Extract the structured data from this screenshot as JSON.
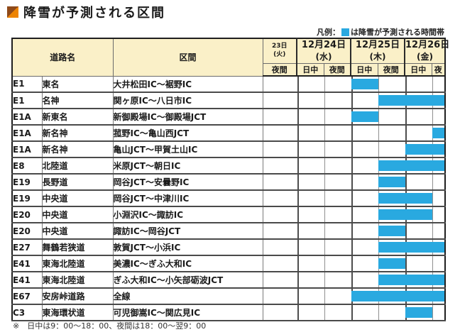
{
  "page": {
    "title": "降雪が予測される区間",
    "footnote": "※　日中は9：00～18：00、夜間は18：00～翌9：00"
  },
  "legend": {
    "label": "凡例：",
    "description": "は降雪が予測される時間帯"
  },
  "table": {
    "col_headers": {
      "road_name": "道路名",
      "section": "区間"
    },
    "day_groups": [
      {
        "date": "23日",
        "weekday": "(火)",
        "periods": [
          "夜間"
        ]
      },
      {
        "date": "12月24日",
        "weekday": "(水)",
        "periods": [
          "日中",
          "夜間"
        ]
      },
      {
        "date": "12月25日",
        "weekday": "(木)",
        "periods": [
          "日中",
          "夜間"
        ]
      },
      {
        "date": "12月26日",
        "weekday": "(金)",
        "periods": [
          "日中",
          "夜"
        ]
      }
    ],
    "rows": [
      {
        "code": "E1",
        "road": "東名",
        "section": "大井松田IC～裾野IC",
        "cells": [
          0,
          0,
          0,
          1,
          0,
          0,
          0
        ]
      },
      {
        "code": "E1",
        "road": "名神",
        "section": "関ヶ原IC～八日市IC",
        "cells": [
          0,
          0,
          0,
          0,
          1,
          1,
          1
        ]
      },
      {
        "code": "E1A",
        "road": "新東名",
        "section": "新御殿場IC～御殿場JCT",
        "cells": [
          0,
          0,
          0,
          1,
          0,
          0,
          0
        ]
      },
      {
        "code": "E1A",
        "road": "新名神",
        "section": "菰野IC～亀山西JCT",
        "cells": [
          0,
          0,
          0,
          0,
          0,
          0,
          1
        ]
      },
      {
        "code": "E1A",
        "road": "新名神",
        "section": "亀山JCT～甲賀土山IC",
        "cells": [
          0,
          0,
          0,
          0,
          0,
          1,
          1
        ]
      },
      {
        "code": "E8",
        "road": "北陸道",
        "section": "米原JCT～朝日IC",
        "cells": [
          0,
          0,
          0,
          0,
          1,
          1,
          1
        ]
      },
      {
        "code": "E19",
        "road": "長野道",
        "section": "岡谷JCT～安曇野IC",
        "cells": [
          0,
          0,
          0,
          0,
          1,
          0,
          0
        ]
      },
      {
        "code": "E19",
        "road": "中央道",
        "section": "岡谷JCT～中津川IC",
        "cells": [
          0,
          0,
          0,
          0,
          1,
          1,
          0
        ]
      },
      {
        "code": "E20",
        "road": "中央道",
        "section": "小淵沢IC～諏訪IC",
        "cells": [
          0,
          0,
          0,
          0,
          1,
          1,
          0
        ]
      },
      {
        "code": "E20",
        "road": "中央道",
        "section": "諏訪IC～岡谷JCT",
        "cells": [
          0,
          0,
          0,
          0,
          1,
          0,
          0
        ]
      },
      {
        "code": "E27",
        "road": "舞鶴若狭道",
        "section": "敦賀JCT～小浜IC",
        "cells": [
          0,
          0,
          0,
          0,
          1,
          1,
          1
        ]
      },
      {
        "code": "E41",
        "road": "東海北陸道",
        "section": "美濃IC～ぎふ大和IC",
        "cells": [
          0,
          0,
          0,
          0,
          1,
          0,
          0
        ]
      },
      {
        "code": "E41",
        "road": "東海北陸道",
        "section": "ぎふ大和IC～小矢部砺波JCT",
        "cells": [
          0,
          0,
          0,
          0,
          1,
          1,
          1
        ]
      },
      {
        "code": "E67",
        "road": "安房峠道路",
        "section": "全線",
        "cells": [
          0,
          0,
          0,
          1,
          1,
          1,
          1
        ]
      },
      {
        "code": "C3",
        "road": "東海環状道",
        "section": "可児御嵩IC～関広見IC",
        "cells": [
          0,
          0,
          0,
          0,
          0,
          1,
          0
        ]
      }
    ]
  },
  "colors": {
    "highlight_blue": "#29a9e0",
    "header_bg": "#faf0c8",
    "icon_dark": "#8f4a1a",
    "icon_orange": "#ed8402"
  }
}
